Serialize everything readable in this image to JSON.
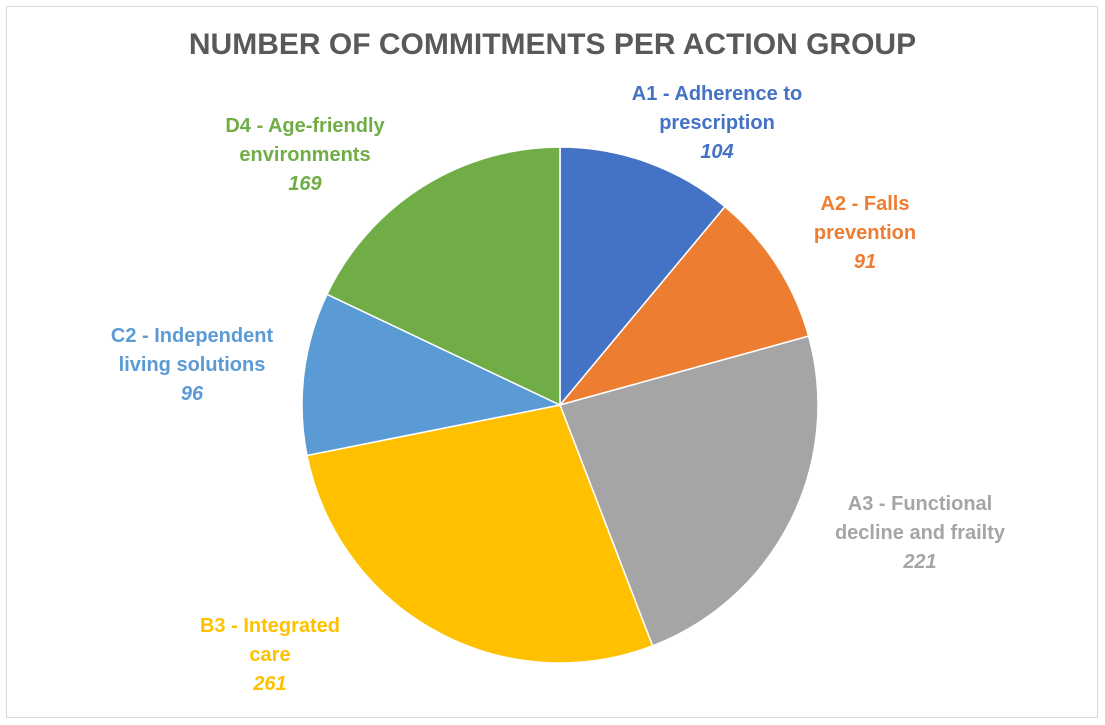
{
  "chart_data": {
    "type": "pie",
    "title": "NUMBER OF COMMITMENTS PER ACTION GROUP",
    "start_angle_deg": 0,
    "direction": "clockwise",
    "slices": [
      {
        "label_lines": [
          "A1 - Adherence to",
          "prescription"
        ],
        "value": 104,
        "value_text": "104",
        "color": "#4472C4"
      },
      {
        "label_lines": [
          "A2 - Falls",
          "prevention"
        ],
        "value": 91,
        "value_text": "91",
        "color": "#ED7D31"
      },
      {
        "label_lines": [
          "A3 - Functional",
          "decline and frailty"
        ],
        "value": 221,
        "value_text": "221",
        "color": "#A5A5A5"
      },
      {
        "label_lines": [
          "B3 - Integrated",
          "care"
        ],
        "value": 261,
        "value_text": "261",
        "color": "#FFC000"
      },
      {
        "label_lines": [
          "C2 - Independent",
          "living solutions"
        ],
        "value": 96,
        "value_text": "96",
        "color": "#5B9BD5"
      },
      {
        "label_lines": [
          "D4 - Age-friendly",
          "environments"
        ],
        "value": 169,
        "value_text": "169",
        "color": "#70AD47"
      }
    ]
  }
}
